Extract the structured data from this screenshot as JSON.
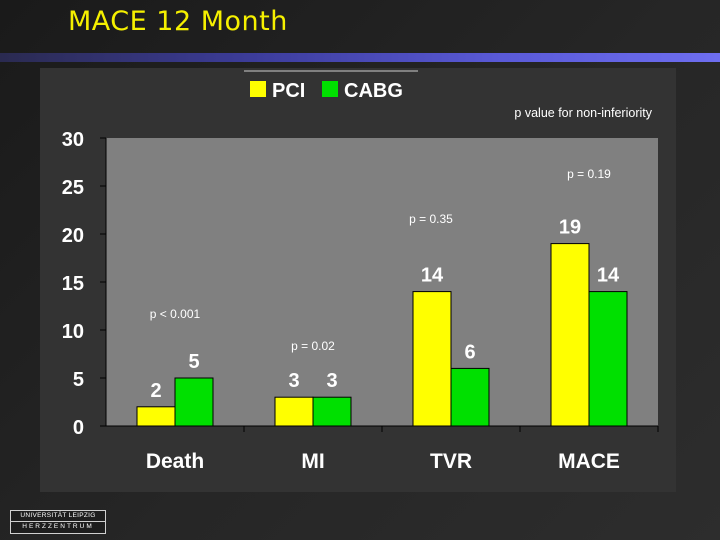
{
  "slide": {
    "title": "MACE 12 Month"
  },
  "logo": {
    "line1": "UNIVERSITÄT LEIPZIG",
    "line2": "HERZZENTRUM"
  },
  "colors": {
    "title": "#f5f000",
    "pci": "#ffff00",
    "cabg": "#00e000",
    "plot_bg": "#808080",
    "panel_bg": "#333333",
    "text": "#ffffff"
  },
  "chart_data": {
    "type": "bar",
    "categories": [
      "Death",
      "MI",
      "TVR",
      "MACE"
    ],
    "series": [
      {
        "name": "PCI",
        "values": [
          2,
          3,
          14,
          19
        ],
        "color": "#ffff00"
      },
      {
        "name": "CABG",
        "values": [
          5,
          3,
          6,
          14
        ],
        "color": "#00e000"
      }
    ],
    "data_labels": [
      [
        "2",
        "3",
        "14",
        "19"
      ],
      [
        "5",
        "3",
        "6",
        "14"
      ]
    ],
    "y_ticks": [
      0,
      5,
      10,
      15,
      20,
      25,
      30
    ],
    "ylim": [
      0,
      30
    ],
    "legend_position": "top-center",
    "subtitle": "p value for non-inferiority",
    "p_values": [
      "p < 0.001",
      "p = 0.02",
      "p = 0.35",
      "p = 0.19"
    ],
    "grid": false
  }
}
